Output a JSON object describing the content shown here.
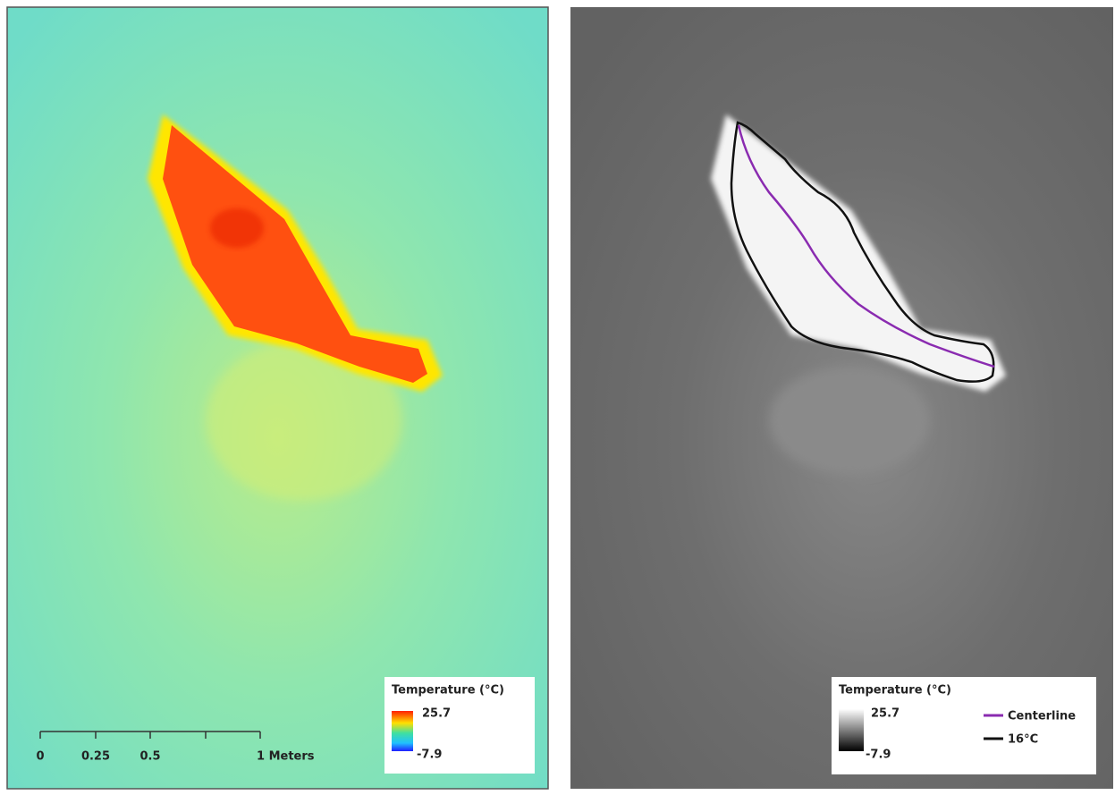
{
  "left_panel": {
    "legend": {
      "title": "Temperature (°C)",
      "max": "25.7",
      "min": "-7.9"
    },
    "scale_bar": {
      "labels": [
        "0",
        "0.25",
        "0.5",
        "1 Meters"
      ]
    }
  },
  "right_panel": {
    "legend": {
      "title": "Temperature (°C)",
      "max": "25.7",
      "min": "-7.9",
      "items": [
        "Centerline",
        "16°C"
      ]
    }
  }
}
